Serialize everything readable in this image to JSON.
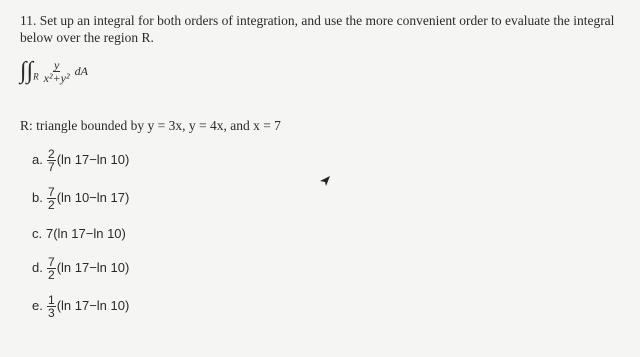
{
  "question": {
    "lines": [
      "11. Set up an integral for both orders of integration, and use the more convenient order to evaluate the integral",
      "below over the region R."
    ]
  },
  "integral": {
    "symbol": "∫∫",
    "region": "R",
    "numerator": "y",
    "denominator": "x²+y²",
    "differential": "dA"
  },
  "region": "R: triangle bounded by y = 3x, y = 4x, and x = 7",
  "options": [
    {
      "label": "a.",
      "numerator": "2",
      "denominator": "7",
      "expression": "(ln 17−ln 10)"
    },
    {
      "label": "b.",
      "numerator": "7",
      "denominator": "2",
      "expression": "(ln 10−ln 17)"
    },
    {
      "label": "c.",
      "expression": "7(ln 17−ln 10)"
    },
    {
      "label": "d.",
      "numerator": "7",
      "denominator": "2",
      "expression": "(ln 17−ln 10)"
    },
    {
      "label": "e.",
      "numerator": "1",
      "denominator": "3",
      "expression": "(ln 17−ln 10)"
    }
  ]
}
